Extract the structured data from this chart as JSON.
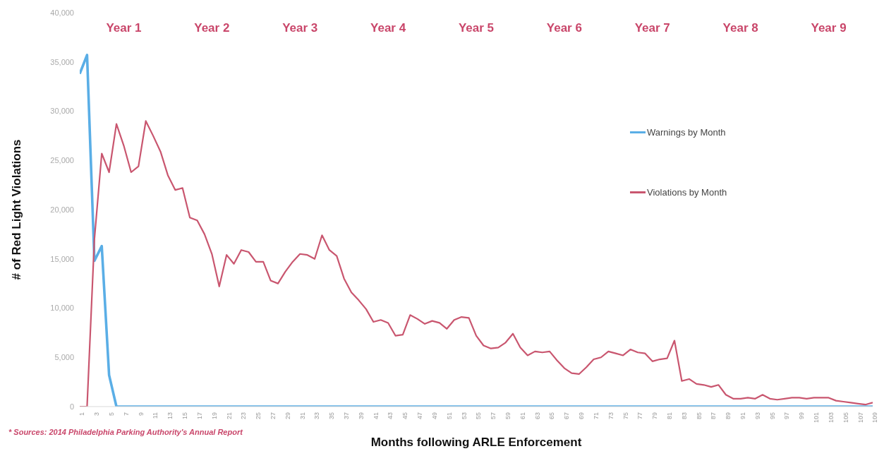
{
  "chart_data": {
    "type": "line",
    "xlabel": "Months following ARLE Enforcement",
    "ylabel": "# of Red Light Violations",
    "x": [
      1,
      2,
      3,
      4,
      5,
      6,
      7,
      8,
      9,
      10,
      11,
      12,
      13,
      14,
      15,
      16,
      17,
      18,
      19,
      20,
      21,
      22,
      23,
      24,
      25,
      26,
      27,
      28,
      29,
      30,
      31,
      32,
      33,
      34,
      35,
      36,
      37,
      38,
      39,
      40,
      41,
      42,
      43,
      44,
      45,
      46,
      47,
      48,
      49,
      50,
      51,
      52,
      53,
      54,
      55,
      56,
      57,
      58,
      59,
      60,
      61,
      62,
      63,
      64,
      65,
      66,
      67,
      68,
      69,
      70,
      71,
      72,
      73,
      74,
      75,
      76,
      77,
      78,
      79,
      80,
      81,
      82,
      83,
      84,
      85,
      86,
      87,
      88,
      89,
      90,
      91,
      92,
      93,
      94,
      95,
      96,
      97,
      98,
      99,
      100,
      101,
      102,
      103,
      104,
      105,
      106,
      107,
      108,
      109
    ],
    "series": [
      {
        "name": "Warnings by Month",
        "color": "#5aaee6",
        "values": [
          33800,
          35700,
          14800,
          16300,
          3200,
          0,
          0,
          0,
          0,
          0,
          0,
          0,
          0,
          0,
          0,
          0,
          0,
          0,
          0,
          0,
          0,
          0,
          0,
          0,
          0,
          0,
          0,
          0,
          0,
          0,
          0,
          0,
          0,
          0,
          0,
          0,
          0,
          0,
          0,
          0,
          0,
          0,
          0,
          0,
          0,
          0,
          0,
          0,
          0,
          0,
          0,
          0,
          0,
          0,
          0,
          0,
          0,
          0,
          0,
          0,
          0,
          0,
          0,
          0,
          0,
          0,
          0,
          0,
          0,
          0,
          0,
          0,
          0,
          0,
          0,
          0,
          0,
          0,
          0,
          0,
          0,
          0,
          0,
          0,
          0,
          0,
          0,
          0,
          0,
          0,
          0,
          0,
          0,
          0,
          0,
          0,
          0,
          0,
          0,
          0,
          0,
          0,
          0,
          0,
          0,
          0,
          0,
          0,
          0
        ]
      },
      {
        "name": "Violations by Month",
        "color": "#c9566f",
        "values": [
          0,
          0,
          17000,
          25700,
          23800,
          28700,
          26500,
          23800,
          24400,
          29000,
          27500,
          25900,
          23500,
          22000,
          22200,
          19200,
          18900,
          17500,
          15500,
          12200,
          15400,
          14500,
          15900,
          15700,
          14700,
          14700,
          12800,
          12500,
          13700,
          14700,
          15500,
          15400,
          15000,
          17400,
          15900,
          15300,
          13000,
          11600,
          10800,
          9900,
          8600,
          8800,
          8500,
          7200,
          7300,
          9300,
          8900,
          8400,
          8700,
          8500,
          7900,
          8800,
          9100,
          9000,
          7200,
          6200,
          5900,
          6000,
          6500,
          7400,
          6000,
          5200,
          5600,
          5500,
          5600,
          4700,
          3900,
          3400,
          3300,
          4000,
          4800,
          5000,
          5600,
          5400,
          5200,
          5800,
          5500,
          5400,
          4600,
          4800,
          4900,
          6700,
          2600,
          2800,
          2300,
          2200,
          2000,
          2200,
          1200,
          800,
          800,
          900,
          800,
          1200,
          800,
          700,
          800,
          900,
          900,
          800,
          900,
          900,
          900,
          600,
          500,
          400,
          300,
          200,
          400
        ]
      }
    ],
    "xlim": [
      1,
      109
    ],
    "xticks": [
      1,
      3,
      5,
      7,
      9,
      11,
      13,
      15,
      17,
      19,
      21,
      23,
      25,
      27,
      29,
      31,
      33,
      35,
      37,
      39,
      41,
      43,
      45,
      47,
      49,
      51,
      53,
      55,
      57,
      59,
      61,
      63,
      65,
      67,
      69,
      71,
      73,
      75,
      77,
      79,
      81,
      83,
      85,
      87,
      89,
      91,
      93,
      95,
      97,
      99,
      101,
      103,
      105,
      107,
      109
    ],
    "ylim": [
      0,
      40000
    ],
    "yticks": [
      {
        "value": 0,
        "label": "0"
      },
      {
        "value": 5000,
        "label": "5,000"
      },
      {
        "value": 10000,
        "label": "10,000"
      },
      {
        "value": 15000,
        "label": "15,000"
      },
      {
        "value": 20000,
        "label": "20,000"
      },
      {
        "value": 25000,
        "label": "25,000"
      },
      {
        "value": 30000,
        "label": "30,000"
      },
      {
        "value": 35000,
        "label": "35,000"
      },
      {
        "value": 40000,
        "label": "40,000"
      }
    ],
    "grid": false,
    "legend": "right",
    "marker": "none",
    "line_style": "solid",
    "annotations": [
      "Year 1",
      "Year 2",
      "Year 3",
      "Year 4",
      "Year 5",
      "Year 6",
      "Year 7",
      "Year 8",
      "Year 9",
      "* Sources: 2014 Philadelphia Parking Authority's Annual Report"
    ]
  }
}
